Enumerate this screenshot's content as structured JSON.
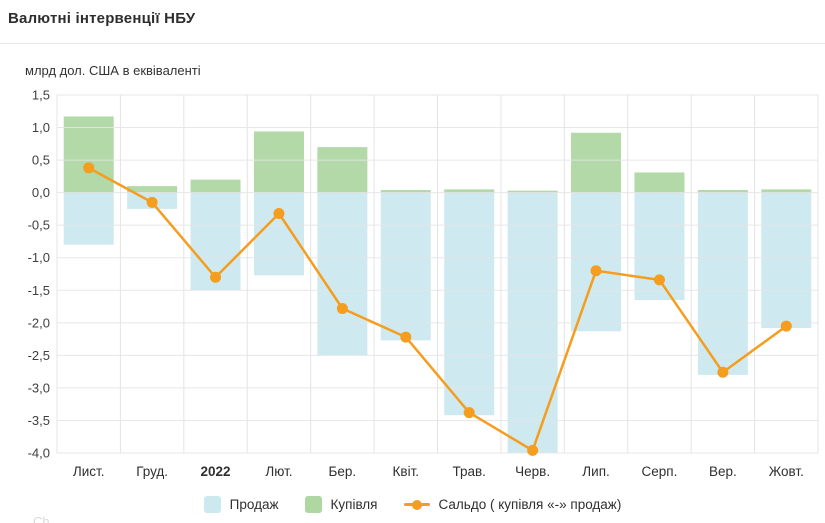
{
  "title": "Валютні інтервенції НБУ",
  "watermark": "Ch",
  "chart_data": {
    "type": "combo-bar-line",
    "title": "Валютні інтервенції НБУ",
    "ylabel": "млрд дол. США в еквіваленті",
    "xlabel": "",
    "ylim": [
      -4.0,
      1.5
    ],
    "grid": true,
    "legend_position": "bottom-center",
    "bold_category": "2022",
    "categories": [
      "Лист.",
      "Груд.",
      "2022",
      "Лют.",
      "Бер.",
      "Квіт.",
      "Трав.",
      "Черв.",
      "Лип.",
      "Серп.",
      "Вер.",
      "Жовт."
    ],
    "y_ticks": [
      {
        "value": 1.5,
        "label": "1,5"
      },
      {
        "value": 1.0,
        "label": "1,0"
      },
      {
        "value": 0.5,
        "label": "0,5"
      },
      {
        "value": 0.0,
        "label": "0,0"
      },
      {
        "value": -0.5,
        "label": "-0,5"
      },
      {
        "value": -1.0,
        "label": "-1,0"
      },
      {
        "value": -1.5,
        "label": "-1,5"
      },
      {
        "value": -2.0,
        "label": "-2,0"
      },
      {
        "value": -2.5,
        "label": "-2,5"
      },
      {
        "value": -3.0,
        "label": "-3,0"
      },
      {
        "value": -3.5,
        "label": "-3,5"
      },
      {
        "value": -4.0,
        "label": "-4,0"
      }
    ],
    "series": [
      {
        "name": "Продаж",
        "type": "bar",
        "color": "#cbe9ef",
        "values": [
          -0.8,
          -0.25,
          -1.5,
          -1.27,
          -2.5,
          -2.27,
          -3.42,
          -4.0,
          -2.13,
          -1.65,
          -2.8,
          -2.08
        ]
      },
      {
        "name": "Купівля",
        "type": "bar",
        "color": "#aed7a2",
        "values": [
          1.17,
          0.1,
          0.2,
          0.94,
          0.7,
          0.04,
          0.05,
          0.03,
          0.92,
          0.31,
          0.04,
          0.05
        ]
      },
      {
        "name": "Сальдо ( купівля «-» продаж)",
        "type": "line",
        "color": "#f59d1e",
        "values": [
          0.38,
          -0.15,
          -1.3,
          -0.32,
          -1.78,
          -2.22,
          -3.38,
          -3.96,
          -1.2,
          -1.34,
          -2.76,
          -2.05
        ]
      }
    ]
  },
  "colors": {
    "grid": "#e4e4e4",
    "axis_text": "#3f3f3f",
    "title_text": "#2e2e2e"
  }
}
